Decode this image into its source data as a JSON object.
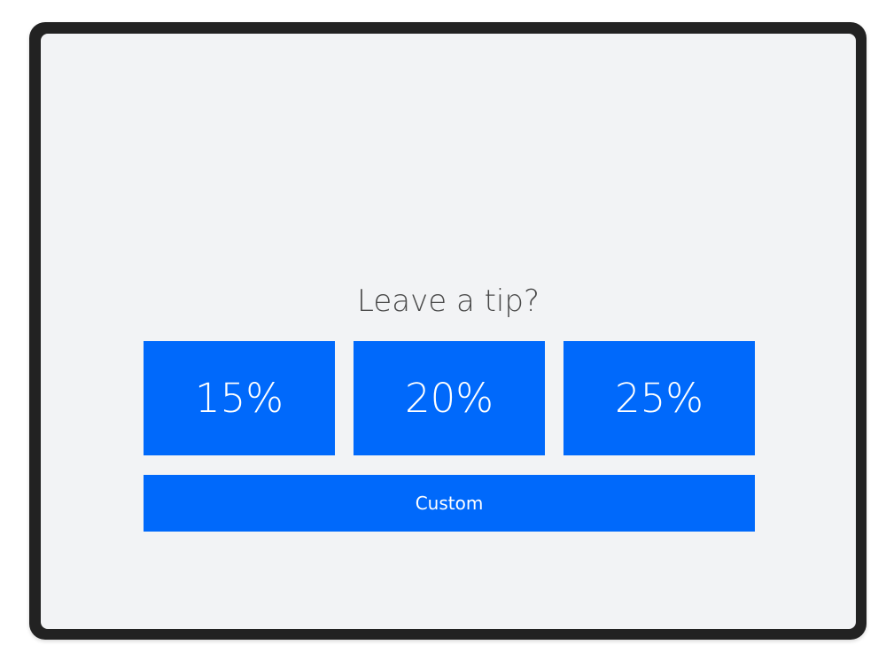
{
  "prompt": {
    "title": "Leave a tip?"
  },
  "options": [
    {
      "label": "15%"
    },
    {
      "label": "20%"
    },
    {
      "label": "25%"
    }
  ],
  "custom": {
    "label": "Custom"
  },
  "colors": {
    "accent": "#0069fb",
    "background": "#f2f3f5",
    "frame": "#222222"
  }
}
